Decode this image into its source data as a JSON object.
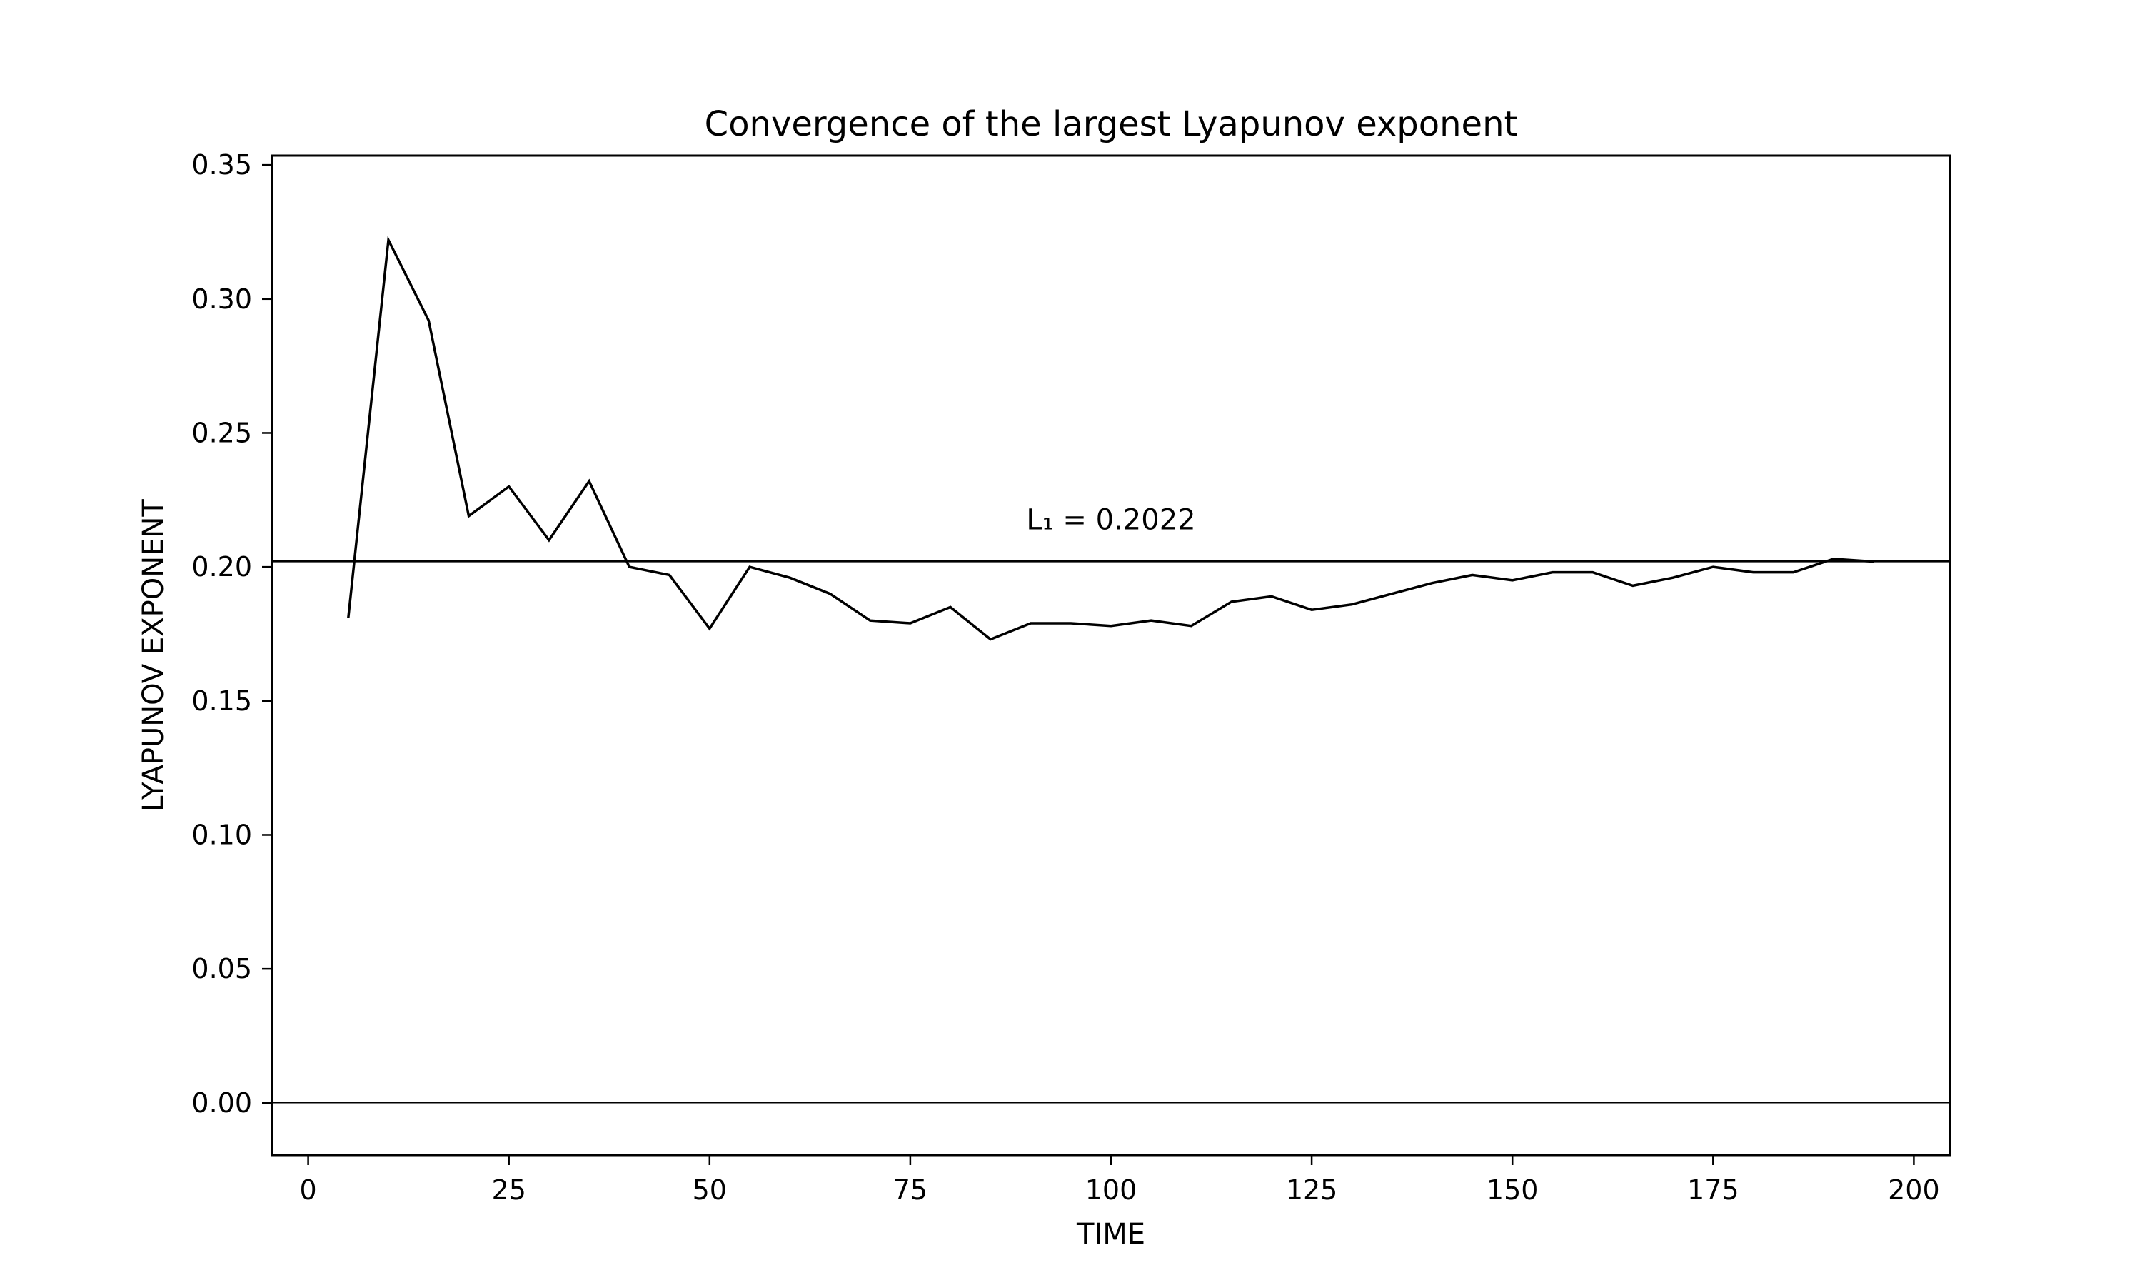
{
  "chart_data": {
    "type": "line",
    "title": "Convergence of the largest Lyapunov exponent",
    "xlabel": "TIME",
    "ylabel": "LYAPUNOV EXPONENT",
    "xlim": [
      -4.5,
      204.5
    ],
    "ylim": [
      -0.0195,
      0.3535
    ],
    "xticks": [
      0,
      25,
      50,
      75,
      100,
      125,
      150,
      175,
      200
    ],
    "xtick_labels": [
      "0",
      "25",
      "50",
      "75",
      "100",
      "125",
      "150",
      "175",
      "200"
    ],
    "yticks": [
      0.0,
      0.05,
      0.1,
      0.15,
      0.2,
      0.25,
      0.3,
      0.35
    ],
    "ytick_labels": [
      "0.00",
      "0.05",
      "0.10",
      "0.15",
      "0.20",
      "0.25",
      "0.30",
      "0.35"
    ],
    "grid": false,
    "series": [
      {
        "x": [
          5,
          10,
          15,
          20,
          25,
          30,
          35,
          40,
          45,
          50,
          55,
          60,
          65,
          70,
          75,
          80,
          85,
          90,
          95,
          100,
          105,
          110,
          115,
          120,
          125,
          130,
          135,
          140,
          145,
          150,
          155,
          160,
          165,
          170,
          175,
          180,
          185,
          190,
          195
        ],
        "y": [
          0.181,
          0.322,
          0.292,
          0.219,
          0.23,
          0.21,
          0.232,
          0.2,
          0.197,
          0.177,
          0.2,
          0.196,
          0.19,
          0.18,
          0.179,
          0.185,
          0.173,
          0.179,
          0.179,
          0.178,
          0.18,
          0.178,
          0.187,
          0.189,
          0.184,
          0.186,
          0.19,
          0.194,
          0.197,
          0.195,
          0.198,
          0.198,
          0.193,
          0.196,
          0.2,
          0.198,
          0.198,
          0.203,
          0.202
        ],
        "color": "#000000"
      }
    ],
    "reference_lines": [
      {
        "y": 0.2022,
        "color": "#000000"
      },
      {
        "y": 0.0,
        "color": "#000000"
      }
    ],
    "annotations": [
      {
        "text": "L₁ = 0.2022",
        "x": 100,
        "y": 0.214
      }
    ]
  }
}
